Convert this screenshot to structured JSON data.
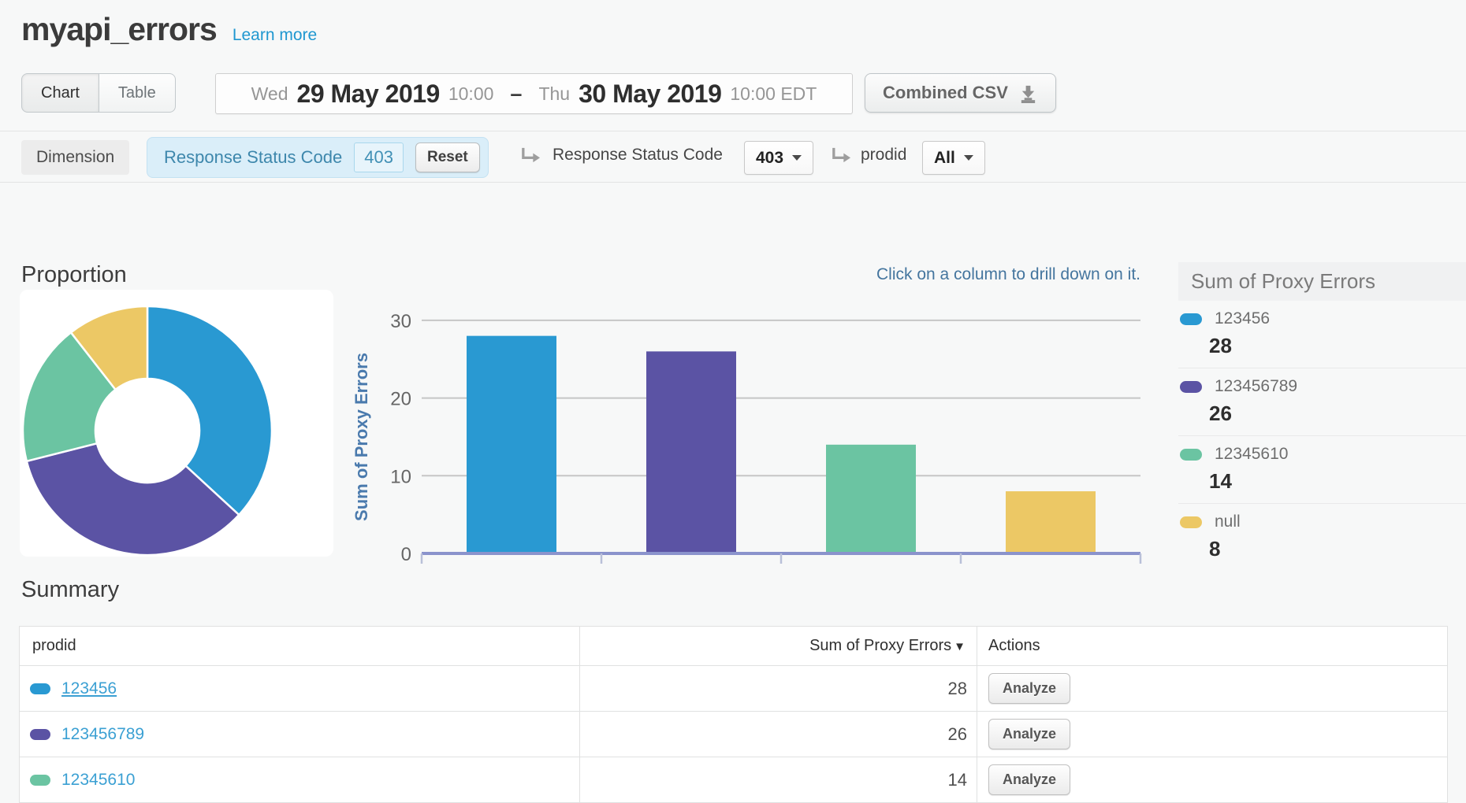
{
  "header": {
    "title": "myapi_errors",
    "learn_more": "Learn more"
  },
  "toolbar": {
    "chart_tab": "Chart",
    "table_tab": "Table",
    "date_range": {
      "start_day": "Wed",
      "start_date": "29 May 2019",
      "start_time": "10:00",
      "dash": "–",
      "end_day": "Thu",
      "end_date": "30 May 2019",
      "end_time": "10:00 EDT"
    },
    "csv_button": "Combined CSV"
  },
  "dimension_bar": {
    "label": "Dimension",
    "chip": {
      "name": "Response Status Code",
      "value": "403",
      "reset": "Reset"
    },
    "drill1": {
      "name": "Response Status Code",
      "value": "403"
    },
    "drill2": {
      "name": "prodid",
      "value": "All"
    }
  },
  "proportion_title": "Proportion",
  "hint": "Click on a column to drill down on it.",
  "legend": {
    "title": "Sum of Proxy Errors",
    "items": [
      {
        "label": "123456",
        "value": "28",
        "color": "#2999d2"
      },
      {
        "label": "123456789",
        "value": "26",
        "color": "#5b53a4"
      },
      {
        "label": "12345610",
        "value": "14",
        "color": "#6bc4a2"
      },
      {
        "label": "null",
        "value": "8",
        "color": "#ecc865"
      }
    ]
  },
  "chart_data": [
    {
      "type": "pie",
      "donut": true,
      "title": "Proportion",
      "labels": [
        "123456",
        "123456789",
        "12345610",
        "null"
      ],
      "values": [
        28,
        26,
        14,
        8
      ],
      "colors": [
        "#2999d2",
        "#5b53a4",
        "#6bc4a2",
        "#ecc865"
      ],
      "legend_position": "right"
    },
    {
      "type": "bar",
      "categories": [
        "123456",
        "123456789",
        "12345610",
        "null"
      ],
      "values": [
        28,
        26,
        14,
        8
      ],
      "colors": [
        "#2999d2",
        "#5b53a4",
        "#6bc4a2",
        "#ecc865"
      ],
      "title": "",
      "xlabel": "",
      "ylabel": "Sum of Proxy Errors",
      "yticks": [
        0,
        10,
        20,
        30
      ],
      "ylim": [
        0,
        32
      ],
      "grid": true,
      "xticklabels": false
    }
  ],
  "summary": {
    "title": "Summary",
    "columns": {
      "prodid": "prodid",
      "value": "Sum of Proxy Errors",
      "actions": "Actions"
    },
    "rows": [
      {
        "prodid": "123456",
        "value": "28",
        "action": "Analyze",
        "color": "#2999d2"
      },
      {
        "prodid": "123456789",
        "value": "26",
        "action": "Analyze",
        "color": "#5b53a4"
      },
      {
        "prodid": "12345610",
        "value": "14",
        "action": "Analyze",
        "color": "#6bc4a2"
      }
    ]
  }
}
